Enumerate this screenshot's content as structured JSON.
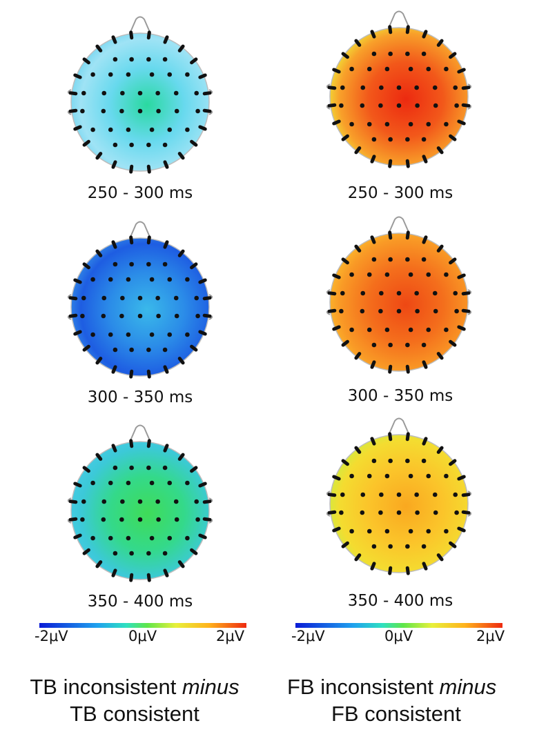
{
  "columns": [
    {
      "caption_line1_prefix": "TB inconsistent ",
      "caption_line1_italic": "minus",
      "caption_line2": "TB consistent",
      "colorbar": {
        "min_label": "-2μV",
        "mid_label": "0μV",
        "max_label": "2μV"
      },
      "maps": [
        {
          "time_window": "250 - 300 ms",
          "palette": [
            "#2ad9a0",
            "#68d9ee",
            "#9fe3f5",
            "#6ad2ee"
          ]
        },
        {
          "time_window": "300 - 350 ms",
          "palette": [
            "#3ab9ea",
            "#2b8ce8",
            "#1e5de2",
            "#3794e6"
          ]
        },
        {
          "time_window": "350 - 400 ms",
          "palette": [
            "#3fdc58",
            "#34d98a",
            "#3cc9d8",
            "#48cbe6"
          ]
        }
      ]
    },
    {
      "caption_line1_prefix": "FB inconsistent ",
      "caption_line1_italic": "minus",
      "caption_line2": "FB consistent",
      "colorbar": {
        "min_label": "-2μV",
        "mid_label": "0μV",
        "max_label": "2μV"
      },
      "maps": [
        {
          "time_window": "250 - 300 ms",
          "palette": [
            "#ec2a10",
            "#f2581a",
            "#f8a02a",
            "#eef03a"
          ]
        },
        {
          "time_window": "300 - 350 ms",
          "palette": [
            "#ee4814",
            "#f46e1c",
            "#f99a26",
            "#fbc02e"
          ]
        },
        {
          "time_window": "350 - 400 ms",
          "palette": [
            "#f9a820",
            "#fbc42a",
            "#f4dc30",
            "#c8ef45"
          ]
        }
      ]
    }
  ]
}
